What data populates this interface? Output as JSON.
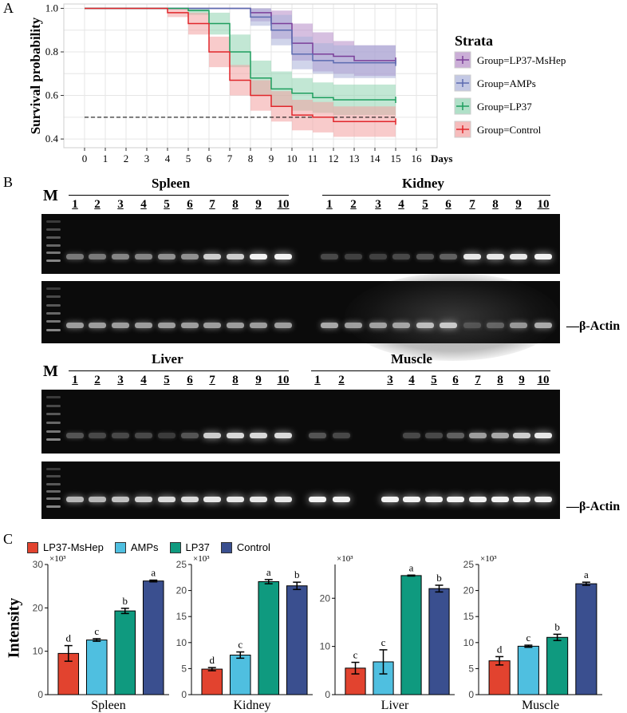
{
  "panels": {
    "a": "A",
    "b": "B",
    "c": "C"
  },
  "survival": {
    "ylabel": "Survival probability",
    "xlabel_unit": "Days",
    "x_ticks": [
      0,
      1,
      2,
      3,
      4,
      5,
      6,
      7,
      8,
      9,
      10,
      11,
      12,
      13,
      14,
      15,
      16
    ],
    "y_ticks": [
      0.4,
      0.6,
      0.8,
      1.0
    ],
    "legend_title": "Strata",
    "reference_line_y": 0.5,
    "series": [
      {
        "name": "Group=LP37-MsHep",
        "color": "#7b3f99",
        "fill": "#b58bc6",
        "steps": [
          [
            0,
            1.0
          ],
          [
            8,
            0.98
          ],
          [
            9,
            0.93
          ],
          [
            10,
            0.84
          ],
          [
            11,
            0.79
          ],
          [
            12,
            0.78
          ],
          [
            13,
            0.76
          ],
          [
            15,
            0.76
          ]
        ],
        "upper": [
          [
            0,
            1.0
          ],
          [
            8,
            1.0
          ],
          [
            9,
            0.99
          ],
          [
            10,
            0.93
          ],
          [
            11,
            0.89
          ],
          [
            12,
            0.85
          ],
          [
            13,
            0.83
          ],
          [
            15,
            0.83
          ]
        ],
        "lower": [
          [
            0,
            1.0
          ],
          [
            8,
            0.94
          ],
          [
            9,
            0.86
          ],
          [
            10,
            0.76
          ],
          [
            11,
            0.71
          ],
          [
            12,
            0.7
          ],
          [
            13,
            0.69
          ],
          [
            15,
            0.69
          ]
        ]
      },
      {
        "name": "Group=AMPs",
        "color": "#5c6bb0",
        "fill": "#a9b1d8",
        "steps": [
          [
            0,
            1.0
          ],
          [
            8,
            0.96
          ],
          [
            9,
            0.9
          ],
          [
            10,
            0.79
          ],
          [
            11,
            0.76
          ],
          [
            12,
            0.75
          ],
          [
            15,
            0.75
          ]
        ],
        "upper": [
          [
            0,
            1.0
          ],
          [
            8,
            1.0
          ],
          [
            9,
            0.97
          ],
          [
            10,
            0.87
          ],
          [
            11,
            0.84
          ],
          [
            12,
            0.83
          ],
          [
            15,
            0.83
          ]
        ],
        "lower": [
          [
            0,
            1.0
          ],
          [
            8,
            0.92
          ],
          [
            9,
            0.83
          ],
          [
            10,
            0.72
          ],
          [
            11,
            0.7
          ],
          [
            12,
            0.68
          ],
          [
            15,
            0.68
          ]
        ]
      },
      {
        "name": "Group=LP37",
        "color": "#1e9e5e",
        "fill": "#8fd3b0",
        "steps": [
          [
            0,
            1.0
          ],
          [
            5,
            0.99
          ],
          [
            6,
            0.93
          ],
          [
            7,
            0.8
          ],
          [
            8,
            0.68
          ],
          [
            9,
            0.63
          ],
          [
            10,
            0.61
          ],
          [
            11,
            0.59
          ],
          [
            12,
            0.58
          ],
          [
            15,
            0.58
          ]
        ],
        "upper": [
          [
            0,
            1.0
          ],
          [
            5,
            1.0
          ],
          [
            6,
            0.98
          ],
          [
            7,
            0.88
          ],
          [
            8,
            0.76
          ],
          [
            9,
            0.71
          ],
          [
            10,
            0.68
          ],
          [
            11,
            0.66
          ],
          [
            12,
            0.65
          ],
          [
            15,
            0.65
          ]
        ],
        "lower": [
          [
            0,
            1.0
          ],
          [
            5,
            0.97
          ],
          [
            6,
            0.88
          ],
          [
            7,
            0.73
          ],
          [
            8,
            0.6
          ],
          [
            9,
            0.55
          ],
          [
            10,
            0.53
          ],
          [
            11,
            0.52
          ],
          [
            12,
            0.51
          ],
          [
            15,
            0.51
          ]
        ]
      },
      {
        "name": "Group=Control",
        "color": "#e0262b",
        "fill": "#f2a0a0",
        "steps": [
          [
            0,
            1.0
          ],
          [
            4,
            0.98
          ],
          [
            5,
            0.93
          ],
          [
            6,
            0.8
          ],
          [
            7,
            0.67
          ],
          [
            8,
            0.6
          ],
          [
            9,
            0.55
          ],
          [
            10,
            0.51
          ],
          [
            11,
            0.5
          ],
          [
            12,
            0.48
          ],
          [
            15,
            0.48
          ]
        ],
        "upper": [
          [
            0,
            1.0
          ],
          [
            4,
            1.0
          ],
          [
            5,
            0.98
          ],
          [
            6,
            0.87
          ],
          [
            7,
            0.74
          ],
          [
            8,
            0.67
          ],
          [
            9,
            0.62
          ],
          [
            10,
            0.58
          ],
          [
            11,
            0.57
          ],
          [
            12,
            0.55
          ],
          [
            15,
            0.55
          ]
        ],
        "lower": [
          [
            0,
            1.0
          ],
          [
            4,
            0.96
          ],
          [
            5,
            0.88
          ],
          [
            6,
            0.73
          ],
          [
            7,
            0.6
          ],
          [
            8,
            0.53
          ],
          [
            9,
            0.48
          ],
          [
            10,
            0.44
          ],
          [
            11,
            0.43
          ],
          [
            12,
            0.41
          ],
          [
            15,
            0.41
          ]
        ]
      }
    ]
  },
  "gels": {
    "m_label": "M",
    "lanes": [
      "1",
      "2",
      "3",
      "4",
      "5",
      "6",
      "7",
      "8",
      "9",
      "10"
    ],
    "tissues": [
      "Spleen",
      "Kidney",
      "Liver",
      "Muscle"
    ],
    "actin_label": "—β-Actin",
    "band_intensity": {
      "spleen": [
        0.45,
        0.45,
        0.5,
        0.5,
        0.55,
        0.55,
        0.8,
        0.8,
        0.95,
        0.95
      ],
      "kidney": [
        0.25,
        0.22,
        0.22,
        0.25,
        0.3,
        0.35,
        0.9,
        0.9,
        0.9,
        0.95
      ],
      "liver": [
        0.3,
        0.25,
        0.25,
        0.25,
        0.2,
        0.3,
        0.8,
        0.85,
        0.85,
        0.85
      ],
      "muscle": [
        0.3,
        0.25,
        0.0,
        0.25,
        0.25,
        0.35,
        0.6,
        0.65,
        0.8,
        0.9
      ]
    },
    "actin_intensity": {
      "spleen_kidney": [
        0.6,
        0.6,
        0.6,
        0.6,
        0.6,
        0.6,
        0.6,
        0.6,
        0.6,
        0.6,
        0.65,
        0.6,
        0.6,
        0.6,
        0.7,
        0.75,
        0.2,
        0.3,
        0.55,
        0.65
      ],
      "liver_muscle": [
        0.7,
        0.7,
        0.75,
        0.8,
        0.85,
        0.85,
        0.9,
        0.9,
        0.9,
        0.9,
        0.95,
        0.95,
        0.95,
        0.95,
        0.95,
        0.95,
        0.95,
        0.95,
        0.95,
        0.95
      ]
    }
  },
  "chart_data": [
    {
      "type": "bar",
      "title": "Spleen",
      "xlabel": "Spleen",
      "ylabel": "Intensity",
      "multiplier": "×10³",
      "categories": [
        "LP37-MsHep",
        "AMPs",
        "LP37",
        "Control"
      ],
      "values": [
        9.5,
        12.6,
        19.3,
        26.2
      ],
      "errors": [
        1.8,
        0.3,
        0.6,
        0.2
      ],
      "letters": [
        "d",
        "c",
        "b",
        "a"
      ],
      "ylim": [
        0,
        30
      ],
      "yticks": [
        0,
        10,
        20,
        30
      ]
    },
    {
      "type": "bar",
      "title": "Kidney",
      "xlabel": "Kidney",
      "ylabel": "Intensity",
      "multiplier": "×10³",
      "categories": [
        "LP37-MsHep",
        "AMPs",
        "LP37",
        "Control"
      ],
      "values": [
        4.9,
        7.6,
        21.7,
        20.9
      ],
      "errors": [
        0.3,
        0.6,
        0.4,
        0.7
      ],
      "letters": [
        "d",
        "c",
        "a",
        "b"
      ],
      "ylim": [
        0,
        25
      ],
      "yticks": [
        0,
        5,
        10,
        15,
        20,
        25
      ]
    },
    {
      "type": "bar",
      "title": "Liver",
      "xlabel": "Liver",
      "ylabel": "Intensity",
      "multiplier": "×10³",
      "categories": [
        "LP37-MsHep",
        "AMPs",
        "LP37",
        "Control"
      ],
      "values": [
        5.5,
        6.8,
        24.7,
        22.0
      ],
      "errors": [
        1.2,
        2.5,
        0.1,
        0.7
      ],
      "letters": [
        "c",
        "c",
        "a",
        "b"
      ],
      "ylim": [
        0,
        27
      ],
      "yticks": [
        0,
        10,
        20
      ]
    },
    {
      "type": "bar",
      "title": "Muscle",
      "xlabel": "Muscle",
      "ylabel": "Intensity",
      "multiplier": "×10³",
      "categories": [
        "LP37-MsHep",
        "AMPs",
        "LP37",
        "Control"
      ],
      "values": [
        6.5,
        9.3,
        11.0,
        21.3
      ],
      "errors": [
        0.8,
        0.2,
        0.6,
        0.3
      ],
      "letters": [
        "d",
        "c",
        "b",
        "a"
      ],
      "ylim": [
        0,
        25
      ],
      "yticks": [
        0,
        5,
        10,
        15,
        20,
        25
      ]
    }
  ],
  "bar_legend": {
    "items": [
      {
        "label": "LP37-MsHep",
        "color": "#e2432f"
      },
      {
        "label": "AMPs",
        "color": "#4fbfe0"
      },
      {
        "label": "LP37",
        "color": "#0f9a7f"
      },
      {
        "label": "Control",
        "color": "#3a4f8f"
      }
    ]
  },
  "intensity_label": "Intensity"
}
